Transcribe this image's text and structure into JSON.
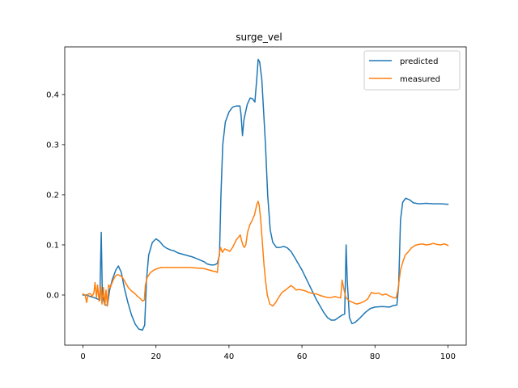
{
  "chart_data": {
    "type": "line",
    "title": "surge_vel",
    "xlabel": "",
    "ylabel": "",
    "xlim": [
      -5,
      105
    ],
    "ylim": [
      -0.1,
      0.495
    ],
    "xticks": [
      0,
      20,
      40,
      60,
      80,
      100
    ],
    "yticks": [
      0.0,
      0.1,
      0.2,
      0.3,
      0.4
    ],
    "xtick_labels": [
      "0",
      "20",
      "40",
      "60",
      "80",
      "100"
    ],
    "ytick_labels": [
      "0.0",
      "0.1",
      "0.2",
      "0.3",
      "0.4"
    ],
    "grid": false,
    "legend_position": "top-right",
    "series": [
      {
        "name": "predicted",
        "color": "#1f77b4",
        "points": [
          [
            0,
            0.0
          ],
          [
            1,
            0.0
          ],
          [
            2,
            -0.003
          ],
          [
            3,
            -0.005
          ],
          [
            4,
            -0.008
          ],
          [
            4.6,
            -0.01
          ],
          [
            5,
            0.125
          ],
          [
            5.3,
            0.0
          ],
          [
            6,
            -0.02
          ],
          [
            6.7,
            -0.02
          ],
          [
            7.3,
            0.01
          ],
          [
            8,
            0.03
          ],
          [
            9,
            0.05
          ],
          [
            9.7,
            0.058
          ],
          [
            10.5,
            0.045
          ],
          [
            11.3,
            0.015
          ],
          [
            12.3,
            -0.015
          ],
          [
            13.3,
            -0.04
          ],
          [
            14.3,
            -0.058
          ],
          [
            15.3,
            -0.068
          ],
          [
            16.3,
            -0.07
          ],
          [
            16.9,
            -0.06
          ],
          [
            17.4,
            0.03
          ],
          [
            18,
            0.08
          ],
          [
            19,
            0.105
          ],
          [
            20,
            0.112
          ],
          [
            21,
            0.107
          ],
          [
            22,
            0.098
          ],
          [
            23,
            0.093
          ],
          [
            24,
            0.09
          ],
          [
            25,
            0.088
          ],
          [
            26,
            0.084
          ],
          [
            28,
            0.08
          ],
          [
            30,
            0.076
          ],
          [
            32,
            0.07
          ],
          [
            33.3,
            0.066
          ],
          [
            34,
            0.062
          ],
          [
            35,
            0.06
          ],
          [
            36,
            0.06
          ],
          [
            36.8,
            0.063
          ],
          [
            37.4,
            0.08
          ],
          [
            37.8,
            0.2
          ],
          [
            38.3,
            0.3
          ],
          [
            39,
            0.345
          ],
          [
            40,
            0.365
          ],
          [
            41,
            0.375
          ],
          [
            42,
            0.377
          ],
          [
            43,
            0.377
          ],
          [
            43.3,
            0.36
          ],
          [
            43.7,
            0.318
          ],
          [
            44.1,
            0.35
          ],
          [
            45,
            0.38
          ],
          [
            45.8,
            0.393
          ],
          [
            46.4,
            0.392
          ],
          [
            47.1,
            0.385
          ],
          [
            47.6,
            0.43
          ],
          [
            48,
            0.47
          ],
          [
            48.4,
            0.465
          ],
          [
            49,
            0.43
          ],
          [
            50,
            0.3
          ],
          [
            50.6,
            0.2
          ],
          [
            51.3,
            0.13
          ],
          [
            52,
            0.105
          ],
          [
            53,
            0.095
          ],
          [
            54,
            0.095
          ],
          [
            55,
            0.097
          ],
          [
            56,
            0.094
          ],
          [
            57,
            0.087
          ],
          [
            58,
            0.075
          ],
          [
            60,
            0.05
          ],
          [
            62,
            0.02
          ],
          [
            64,
            -0.01
          ],
          [
            66,
            -0.035
          ],
          [
            67,
            -0.045
          ],
          [
            68,
            -0.05
          ],
          [
            69,
            -0.05
          ],
          [
            70,
            -0.045
          ],
          [
            71,
            -0.04
          ],
          [
            71.7,
            -0.038
          ],
          [
            72.1,
            0.1
          ],
          [
            72.4,
            0.03
          ],
          [
            73,
            -0.045
          ],
          [
            73.7,
            -0.057
          ],
          [
            74.5,
            -0.055
          ],
          [
            76,
            -0.045
          ],
          [
            77.3,
            -0.035
          ],
          [
            78.7,
            -0.027
          ],
          [
            80,
            -0.024
          ],
          [
            82,
            -0.023
          ],
          [
            84,
            -0.024
          ],
          [
            85,
            -0.021
          ],
          [
            86,
            -0.02
          ],
          [
            86.5,
            0.02
          ],
          [
            87,
            0.15
          ],
          [
            87.6,
            0.185
          ],
          [
            88.4,
            0.193
          ],
          [
            89.5,
            0.19
          ],
          [
            90.5,
            0.184
          ],
          [
            92,
            0.182
          ],
          [
            94,
            0.183
          ],
          [
            96,
            0.182
          ],
          [
            98,
            0.182
          ],
          [
            100,
            0.181
          ]
        ]
      },
      {
        "name": "measured",
        "color": "#ff7f0e",
        "points": [
          [
            0,
            0.002
          ],
          [
            0.6,
            0.0
          ],
          [
            1,
            -0.015
          ],
          [
            1.4,
            0.002
          ],
          [
            2,
            0.003
          ],
          [
            2.5,
            -0.003
          ],
          [
            3,
            0.005
          ],
          [
            3.3,
            0.025
          ],
          [
            3.7,
            -0.005
          ],
          [
            4,
            0.02
          ],
          [
            4.4,
            -0.012
          ],
          [
            4.8,
            0.018
          ],
          [
            5.2,
            -0.018
          ],
          [
            5.6,
            0.015
          ],
          [
            6,
            -0.02
          ],
          [
            6.3,
            0.01
          ],
          [
            6.7,
            -0.022
          ],
          [
            7,
            0.02
          ],
          [
            7.5,
            0.015
          ],
          [
            8,
            0.025
          ],
          [
            8.6,
            0.035
          ],
          [
            9.2,
            0.04
          ],
          [
            9.8,
            0.04
          ],
          [
            10.4,
            0.038
          ],
          [
            11,
            0.033
          ],
          [
            11.6,
            0.025
          ],
          [
            12.4,
            0.015
          ],
          [
            13.3,
            0.008
          ],
          [
            14.2,
            0.003
          ],
          [
            15,
            -0.003
          ],
          [
            15.7,
            -0.007
          ],
          [
            16.3,
            -0.012
          ],
          [
            16.8,
            -0.01
          ],
          [
            17.1,
            0.02
          ],
          [
            17.6,
            0.035
          ],
          [
            18.5,
            0.045
          ],
          [
            19.5,
            0.05
          ],
          [
            20.5,
            0.053
          ],
          [
            21.5,
            0.055
          ],
          [
            23,
            0.055
          ],
          [
            25,
            0.055
          ],
          [
            27,
            0.055
          ],
          [
            29,
            0.055
          ],
          [
            31,
            0.054
          ],
          [
            33,
            0.053
          ],
          [
            34.5,
            0.05
          ],
          [
            35.5,
            0.048
          ],
          [
            36.3,
            0.047
          ],
          [
            36.8,
            0.045
          ],
          [
            37.3,
            0.08
          ],
          [
            37.7,
            0.095
          ],
          [
            38.2,
            0.085
          ],
          [
            38.8,
            0.092
          ],
          [
            39.5,
            0.09
          ],
          [
            40.2,
            0.087
          ],
          [
            41,
            0.095
          ],
          [
            42,
            0.11
          ],
          [
            42.8,
            0.117
          ],
          [
            43.1,
            0.12
          ],
          [
            43.4,
            0.11
          ],
          [
            43.8,
            0.1
          ],
          [
            44.2,
            0.095
          ],
          [
            44.6,
            0.1
          ],
          [
            45.1,
            0.125
          ],
          [
            45.7,
            0.14
          ],
          [
            46.3,
            0.148
          ],
          [
            47,
            0.16
          ],
          [
            47.6,
            0.18
          ],
          [
            48,
            0.187
          ],
          [
            48.3,
            0.178
          ],
          [
            48.7,
            0.15
          ],
          [
            49.2,
            0.1
          ],
          [
            49.6,
            0.06
          ],
          [
            50,
            0.03
          ],
          [
            50.5,
            0.0
          ],
          [
            51.2,
            -0.018
          ],
          [
            52,
            -0.022
          ],
          [
            52.8,
            -0.015
          ],
          [
            53.6,
            -0.005
          ],
          [
            54.5,
            0.005
          ],
          [
            55.5,
            0.01
          ],
          [
            56.3,
            0.015
          ],
          [
            57,
            0.019
          ],
          [
            57.7,
            0.015
          ],
          [
            58.4,
            0.01
          ],
          [
            59.2,
            0.011
          ],
          [
            60,
            0.01
          ],
          [
            61,
            0.008
          ],
          [
            62,
            0.005
          ],
          [
            63,
            0.003
          ],
          [
            64,
            0.002
          ],
          [
            65,
            -0.001
          ],
          [
            66,
            -0.003
          ],
          [
            67,
            -0.005
          ],
          [
            68,
            -0.005
          ],
          [
            69,
            -0.003
          ],
          [
            70,
            -0.005
          ],
          [
            70.6,
            -0.006
          ],
          [
            71,
            0.03
          ],
          [
            71.4,
            0.015
          ],
          [
            72,
            -0.005
          ],
          [
            73,
            -0.012
          ],
          [
            74,
            -0.015
          ],
          [
            75,
            -0.018
          ],
          [
            76,
            -0.016
          ],
          [
            77,
            -0.013
          ],
          [
            78,
            -0.008
          ],
          [
            79,
            0.005
          ],
          [
            80,
            0.003
          ],
          [
            81,
            0.004
          ],
          [
            82,
            0.0
          ],
          [
            83,
            0.002
          ],
          [
            84,
            -0.002
          ],
          [
            85,
            -0.005
          ],
          [
            85.8,
            -0.006
          ],
          [
            86.3,
            0.01
          ],
          [
            87,
            0.05
          ],
          [
            87.6,
            0.065
          ],
          [
            88.3,
            0.08
          ],
          [
            89,
            0.085
          ],
          [
            90,
            0.094
          ],
          [
            91,
            0.099
          ],
          [
            92,
            0.101
          ],
          [
            93,
            0.102
          ],
          [
            94,
            0.1
          ],
          [
            95,
            0.101
          ],
          [
            96,
            0.103
          ],
          [
            97,
            0.101
          ],
          [
            98,
            0.1
          ],
          [
            99,
            0.102
          ],
          [
            100,
            0.099
          ]
        ]
      }
    ]
  }
}
